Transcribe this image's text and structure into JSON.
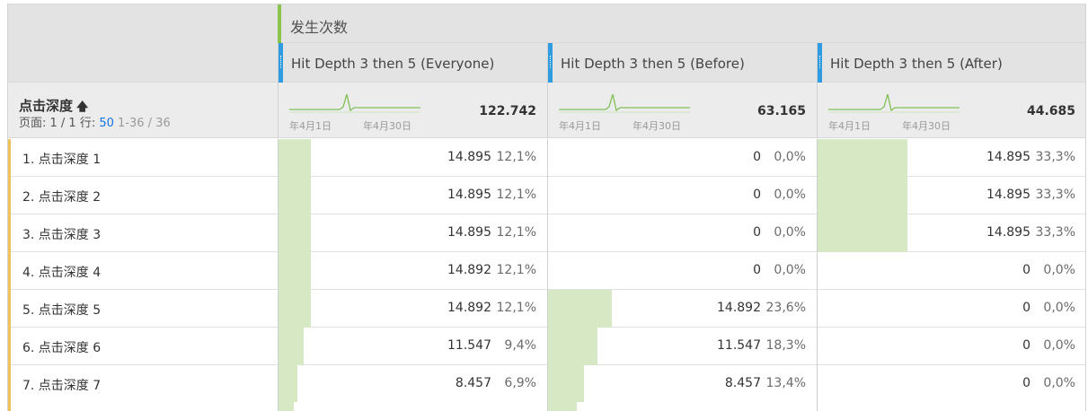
{
  "metric": {
    "label": "发生次数",
    "accent": "#8bc34a"
  },
  "segments": [
    {
      "label": "Hit Depth 3 then 5 (Everyone)",
      "total": "122.742"
    },
    {
      "label": "Hit Depth 3 then 5 (Before)",
      "total": "63.165"
    },
    {
      "label": "Hit Depth 3 then 5 (After)",
      "total": "44.685"
    }
  ],
  "segment_accent": "#2f9be0",
  "dimension": {
    "title": "点击深度",
    "sort_icon": "arrow-up-icon"
  },
  "pager": {
    "prefix": "页面: 1 / 1 行:",
    "rows": "50",
    "range": "1-36 / 36"
  },
  "sparkline": {
    "start_label": "年4月1日",
    "end_label": "年4月30日"
  },
  "rows": [
    {
      "name": "1.  点击深度 1",
      "cells": [
        {
          "value": "14.895",
          "pct": "12,1%",
          "share": 0.121
        },
        {
          "value": "0",
          "pct": "0,0%",
          "share": 0
        },
        {
          "value": "14.895",
          "pct": "33,3%",
          "share": 0.333
        }
      ]
    },
    {
      "name": "2.  点击深度 2",
      "cells": [
        {
          "value": "14.895",
          "pct": "12,1%",
          "share": 0.121
        },
        {
          "value": "0",
          "pct": "0,0%",
          "share": 0
        },
        {
          "value": "14.895",
          "pct": "33,3%",
          "share": 0.333
        }
      ]
    },
    {
      "name": "3.  点击深度 3",
      "cells": [
        {
          "value": "14.895",
          "pct": "12,1%",
          "share": 0.121
        },
        {
          "value": "0",
          "pct": "0,0%",
          "share": 0
        },
        {
          "value": "14.895",
          "pct": "33,3%",
          "share": 0.333
        }
      ]
    },
    {
      "name": "4.  点击深度 4",
      "cells": [
        {
          "value": "14.892",
          "pct": "12,1%",
          "share": 0.121
        },
        {
          "value": "0",
          "pct": "0,0%",
          "share": 0
        },
        {
          "value": "0",
          "pct": "0,0%",
          "share": 0
        }
      ]
    },
    {
      "name": "5.  点击深度 5",
      "cells": [
        {
          "value": "14.892",
          "pct": "12,1%",
          "share": 0.121
        },
        {
          "value": "14.892",
          "pct": "23,6%",
          "share": 0.236
        },
        {
          "value": "0",
          "pct": "0,0%",
          "share": 0
        }
      ]
    },
    {
      "name": "6.  点击深度 6",
      "cells": [
        {
          "value": "11.547",
          "pct": "9,4%",
          "share": 0.094
        },
        {
          "value": "11.547",
          "pct": "18,3%",
          "share": 0.183
        },
        {
          "value": "0",
          "pct": "0,0%",
          "share": 0
        }
      ]
    },
    {
      "name": "7.  点击深度 7",
      "cells": [
        {
          "value": "8.457",
          "pct": "6,9%",
          "share": 0.069
        },
        {
          "value": "8.457",
          "pct": "13,4%",
          "share": 0.134
        },
        {
          "value": "0",
          "pct": "0,0%",
          "share": 0
        }
      ]
    }
  ],
  "partial_row_shares": [
    0.055,
    0.105,
    0
  ],
  "colors": {
    "bar_fill": "#d6e8c4",
    "row_accent": "#f0c25a",
    "link": "#1473e6"
  }
}
